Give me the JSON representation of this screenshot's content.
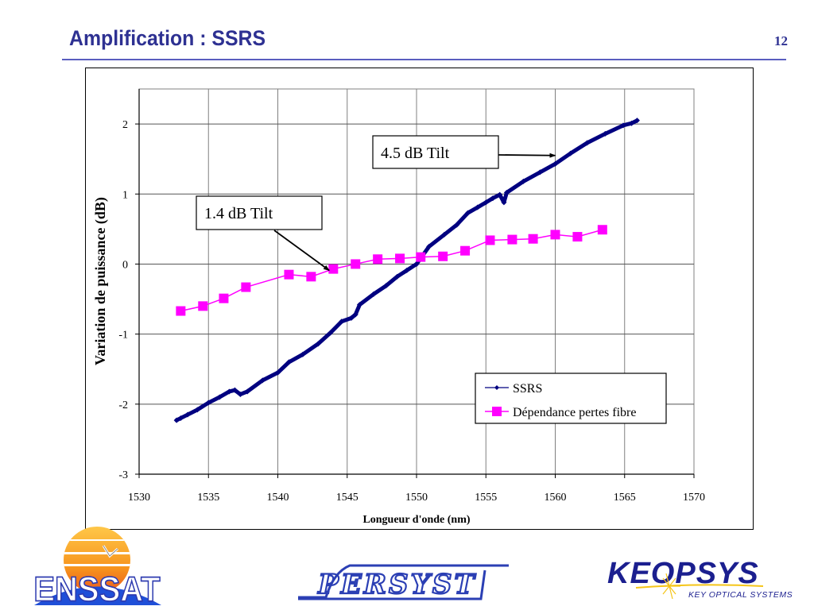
{
  "header": {
    "title": "Amplification : SSRS",
    "page_number": "12"
  },
  "colors": {
    "title": "#2e3192",
    "ssrs": "#000080",
    "fibre": "#ff00ff",
    "grid": "#808080"
  },
  "chart_data": {
    "type": "line",
    "title": "",
    "xlabel": "Longueur d'onde (nm)",
    "ylabel": "Variation de puissance (dB)",
    "xlim": [
      1530,
      1570
    ],
    "ylim": [
      -3,
      2.5
    ],
    "xticks": [
      1530,
      1535,
      1540,
      1545,
      1550,
      1555,
      1560,
      1565,
      1570
    ],
    "yticks": [
      -3,
      -2,
      -1,
      0,
      1,
      2
    ],
    "xtick_labels": [
      "1530",
      "1535",
      "1540",
      "1545",
      "1550",
      "1555",
      "1560",
      "1565",
      "1570"
    ],
    "ytick_labels": [
      "-3",
      "-2",
      "-1",
      "0",
      "1",
      "2"
    ],
    "grid": true,
    "legend_position": "lower-right",
    "series": [
      {
        "name": "SSRS",
        "marker": "diamond",
        "x": [
          1532.7,
          1533.0,
          1533.5,
          1534.2,
          1535.0,
          1535.8,
          1536.5,
          1536.9,
          1537.3,
          1537.8,
          1538.9,
          1540.0,
          1540.8,
          1541.8,
          1542.9,
          1543.8,
          1544.6,
          1545.3,
          1545.6,
          1545.9,
          1546.9,
          1547.8,
          1548.6,
          1549.3,
          1550.0,
          1550.9,
          1552.0,
          1552.9,
          1553.7,
          1554.4,
          1555.0,
          1555.5,
          1556.0,
          1556.3,
          1556.5,
          1557.7,
          1558.9,
          1560.0,
          1561.1,
          1562.3,
          1563.6,
          1564.9,
          1565.5,
          1565.9
        ],
        "y": [
          -2.23,
          -2.2,
          -2.15,
          -2.08,
          -1.98,
          -1.9,
          -1.82,
          -1.8,
          -1.86,
          -1.82,
          -1.66,
          -1.55,
          -1.4,
          -1.29,
          -1.14,
          -0.98,
          -0.82,
          -0.77,
          -0.72,
          -0.58,
          -0.43,
          -0.31,
          -0.18,
          -0.09,
          0.0,
          0.25,
          0.42,
          0.56,
          0.73,
          0.81,
          0.88,
          0.94,
          0.99,
          0.88,
          1.02,
          1.18,
          1.31,
          1.43,
          1.58,
          1.73,
          1.86,
          1.98,
          2.01,
          2.05
        ]
      },
      {
        "name": "Dépendance pertes fibre",
        "marker": "square",
        "x": [
          1533.0,
          1534.6,
          1536.1,
          1537.7,
          1540.8,
          1542.4,
          1544.0,
          1545.6,
          1547.2,
          1548.8,
          1550.3,
          1551.9,
          1553.5,
          1555.3,
          1556.9,
          1558.4,
          1560.0,
          1561.6,
          1563.4
        ],
        "y": [
          -0.67,
          -0.6,
          -0.49,
          -0.33,
          -0.15,
          -0.18,
          -0.07,
          0.0,
          0.07,
          0.08,
          0.1,
          0.11,
          0.19,
          0.34,
          0.35,
          0.36,
          0.42,
          0.39,
          0.49
        ]
      }
    ],
    "annotations": [
      {
        "text": "4.5 dB Tilt",
        "arrow_to": [
          1560.0,
          1.55
        ]
      },
      {
        "text": "1.4 dB Tilt",
        "arrow_to": [
          1543.7,
          -0.09
        ]
      }
    ]
  },
  "logos": {
    "left": "ENSSAT",
    "center": "PERSYST",
    "right": "KEOPSYS",
    "right_tagline": "KEY OPTICAL SYSTEMS"
  }
}
